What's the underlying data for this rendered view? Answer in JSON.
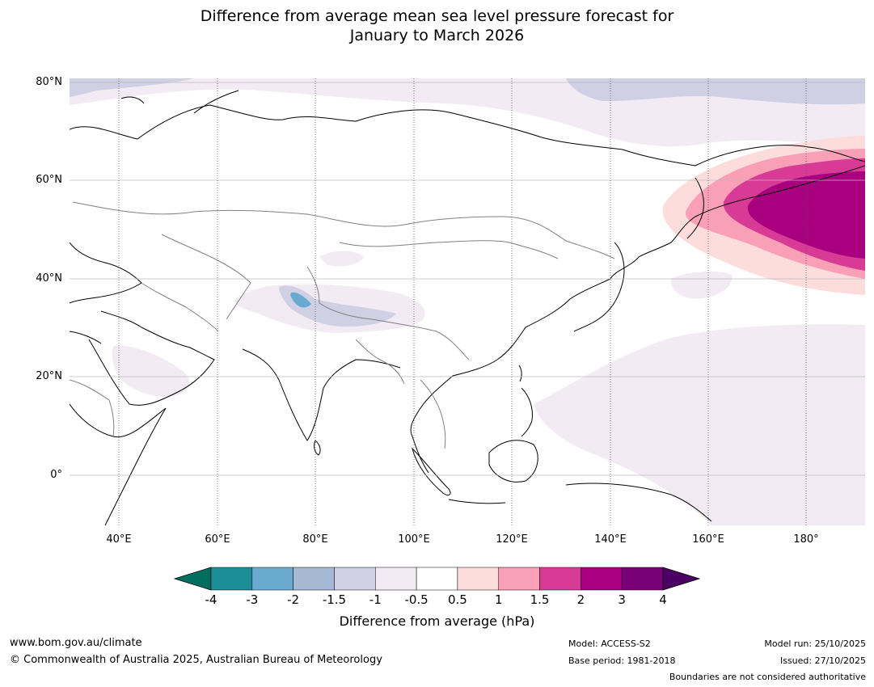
{
  "title": {
    "line1": "Difference from average mean sea level pressure forecast for",
    "line2": "January to March 2026"
  },
  "map": {
    "lat_labels": [
      "80°N",
      "60°N",
      "40°N",
      "20°N",
      "0°"
    ],
    "lon_labels": [
      "40°E",
      "60°E",
      "80°E",
      "100°E",
      "120°E",
      "140°E",
      "160°E",
      "180°"
    ],
    "lon_range": [
      30,
      192
    ],
    "lat_range": [
      -10,
      81
    ],
    "colors": {
      "ocean": "#ffffff",
      "coast": "#000000",
      "border": "#808080",
      "grid": "#bbbbbb"
    }
  },
  "colorbar": {
    "ticks": [
      "-4",
      "-3",
      "-2",
      "-1.5",
      "-1",
      "-0.5",
      "0.5",
      "1",
      "1.5",
      "2",
      "3",
      "4"
    ],
    "colors": [
      "#006e5f",
      "#1b8e98",
      "#6aaad0",
      "#a5b8d4",
      "#cfd0e4",
      "#f3ebf4",
      "#ffffff",
      "#fddcdc",
      "#f99fb6",
      "#d83b96",
      "#a8007e",
      "#7a0077",
      "#4c0063"
    ],
    "label": "Difference from average (hPa)"
  },
  "footer": {
    "website": "www.bom.gov.au/climate",
    "copyright": "© Commonwealth of Australia 2025, Australian Bureau of Meteorology",
    "model": "Model: ACCESS-S2",
    "base_period": "Base period: 1981-2018",
    "model_run": "Model run: 25/10/2025",
    "issued": "Issued: 27/10/2025",
    "disclaimer": "Boundaries are not considered authoritative"
  }
}
